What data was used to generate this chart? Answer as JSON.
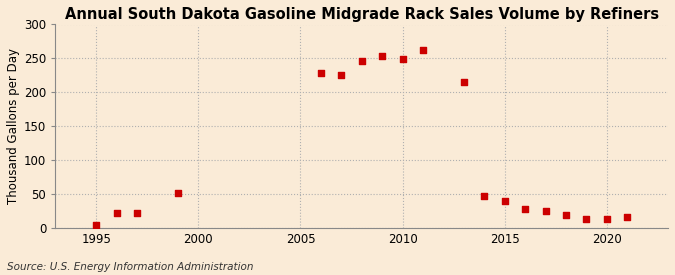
{
  "title": "Annual South Dakota Gasoline Midgrade Rack Sales Volume by Refiners",
  "ylabel": "Thousand Gallons per Day",
  "source": "Source: U.S. Energy Information Administration",
  "background_color": "#faebd7",
  "marker_color": "#cc0000",
  "years": [
    1995,
    1996,
    1997,
    1999,
    2006,
    2007,
    2008,
    2009,
    2010,
    2011,
    2013,
    2014,
    2015,
    2016,
    2017,
    2018,
    2019,
    2020,
    2021
  ],
  "values": [
    5,
    22,
    22,
    52,
    228,
    225,
    246,
    253,
    249,
    263,
    216,
    47,
    40,
    29,
    26,
    19,
    14,
    13,
    16
  ],
  "xlim": [
    1993,
    2023
  ],
  "ylim": [
    0,
    300
  ],
  "yticks": [
    0,
    50,
    100,
    150,
    200,
    250,
    300
  ],
  "xticks": [
    1995,
    2000,
    2005,
    2010,
    2015,
    2020
  ],
  "grid_color": "#b0b0b0",
  "title_fontsize": 10.5,
  "axis_fontsize": 8.5,
  "source_fontsize": 7.5,
  "marker_size": 16
}
